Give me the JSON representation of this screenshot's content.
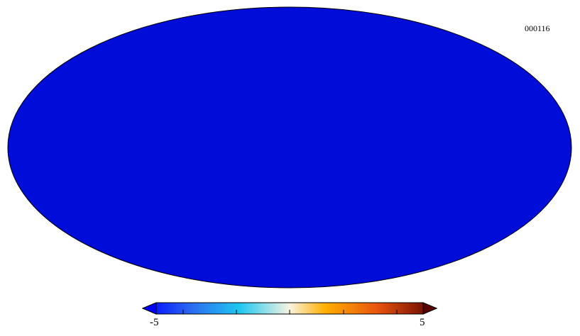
{
  "map": {
    "id_label": "000116",
    "projection": "mollweide",
    "colormap": [
      "#0000ff",
      "#2a6ef0",
      "#1ec8f0",
      "#f8f3e0",
      "#ffb000",
      "#e8530e",
      "#5a0000"
    ]
  },
  "colorbar": {
    "min_label": "-5",
    "max_label": "5",
    "min": -5,
    "max": 5
  }
}
